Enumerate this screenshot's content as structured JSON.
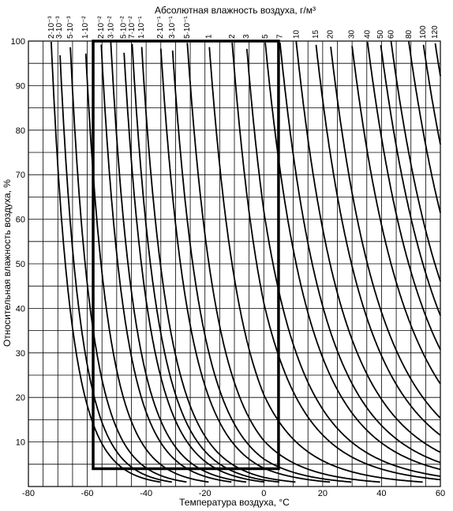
{
  "chart_data": {
    "type": "line",
    "title": "Абсолютная влажность воздуха, г/м³",
    "xlabel": "Температура воздуха, °C",
    "ylabel": "Относительная влажность воздуха, %",
    "xlim": [
      -80,
      60
    ],
    "ylim": [
      0,
      100
    ],
    "grid": true,
    "x_ticks": [
      "-80",
      "-60",
      "-40",
      "-20",
      "0",
      "20",
      "40",
      "60"
    ],
    "y_ticks": [
      "10",
      "20",
      "30",
      "40",
      "50",
      "60",
      "70",
      "80",
      "90",
      "100"
    ],
    "curve_labels": [
      "2·10⁻³",
      "3·10⁻³",
      "5·10⁻³",
      "1·10⁻²",
      "2·10⁻²",
      "3·10⁻²",
      "5·10⁻²",
      "7·10⁻²",
      "1·10⁻¹",
      "2·10⁻¹",
      "3·10⁻¹",
      "5·10⁻¹",
      "1",
      "2",
      "3",
      "5",
      "7",
      "10",
      "15",
      "20",
      "30",
      "40",
      "50",
      "60",
      "80",
      "100",
      "120"
    ],
    "series_units": "g/m³",
    "series_values": [
      0.002,
      0.003,
      0.005,
      0.01,
      0.02,
      0.03,
      0.05,
      0.07,
      0.1,
      0.2,
      0.3,
      0.5,
      1,
      2,
      3,
      5,
      7,
      10,
      15,
      20,
      30,
      40,
      50,
      60,
      80,
      100,
      120
    ],
    "highlighted_region": {
      "t_min": -58,
      "t_max": 5,
      "rh_min": 4,
      "rh_max": 100
    }
  }
}
